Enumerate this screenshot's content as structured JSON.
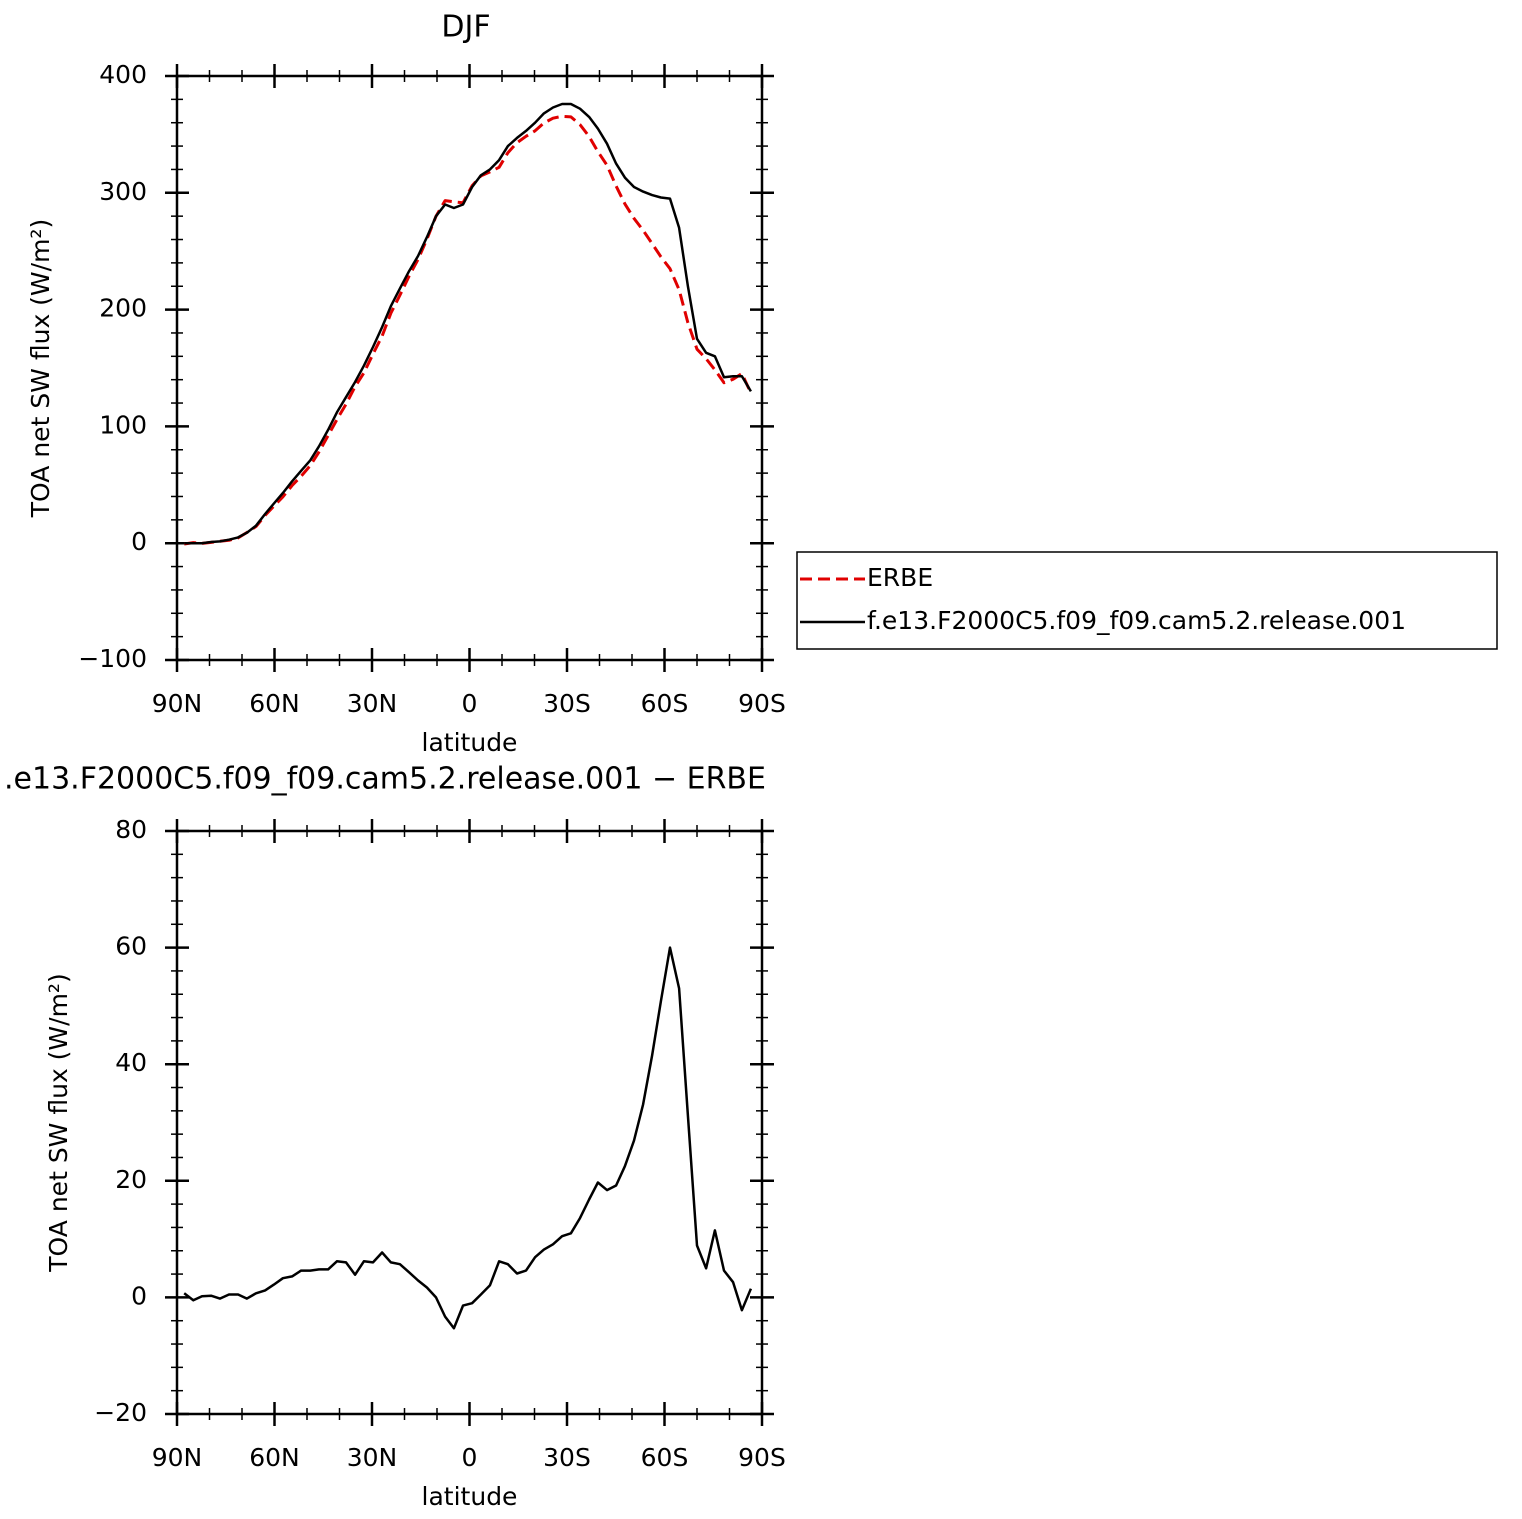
{
  "chart_data": [
    {
      "type": "line",
      "title": "DJF",
      "xlabel": "latitude",
      "ylabel": "TOA net SW flux (W/m²)",
      "xlim": [
        90,
        -90
      ],
      "xticks": [
        {
          "value": 90,
          "label": "90N"
        },
        {
          "value": 60,
          "label": "60N"
        },
        {
          "value": 30,
          "label": "30N"
        },
        0,
        {
          "value": -30,
          "label": "30S"
        },
        {
          "value": -60,
          "label": "60S"
        },
        {
          "value": -90,
          "label": "90S"
        }
      ],
      "ylim": [
        -100,
        400
      ],
      "yticks": [
        {
          "value": -100,
          "label": "−100"
        },
        0,
        100,
        200,
        300,
        400
      ],
      "legend": "right",
      "x": [
        87.8,
        85,
        82.3,
        79.5,
        76.8,
        74,
        71.2,
        68.5,
        65.7,
        62.9,
        60.2,
        57.4,
        54.6,
        51.8,
        49,
        46.3,
        43.5,
        40.8,
        38,
        35.2,
        32.5,
        29.7,
        26.9,
        24.2,
        21.4,
        18.6,
        15.8,
        13.1,
        10.3,
        7.5,
        4.8,
        2,
        -0.8,
        -3.5,
        -6.3,
        -9.1,
        -11.8,
        -14.6,
        -17.4,
        -20.2,
        -22.9,
        -25.7,
        -28.5,
        -31.2,
        -34,
        -36.8,
        -39.5,
        -42.3,
        -45.1,
        -47.8,
        -50.6,
        -53.4,
        -56.2,
        -58.9,
        -61.7,
        -64.5,
        -67.2,
        -70,
        -72.8,
        -75.5,
        -78.3,
        -81.1,
        -83.8,
        -86.6
      ],
      "series": [
        {
          "name": "ERBE",
          "color": "#e00000",
          "dash": true,
          "values": [
            -0.7,
            0.5,
            -0.2,
            0.7,
            1.7,
            2.5,
            4.5,
            9.2,
            14.3,
            23.8,
            31.8,
            39.7,
            49.4,
            57.4,
            66.4,
            78.2,
            92.2,
            105.8,
            119,
            134.1,
            145.8,
            162,
            177.3,
            197,
            212.3,
            228.7,
            243.1,
            260.3,
            280,
            293.3,
            292.3,
            291.4,
            306,
            314.5,
            317.9,
            321.8,
            334.3,
            342.9,
            348.4,
            353.1,
            359.8,
            363.9,
            365.5,
            365,
            358.4,
            348.2,
            335.3,
            323.6,
            305.8,
            290.5,
            278.1,
            267.9,
            256.5,
            245.2,
            235,
            217,
            188.8,
            166.1,
            158,
            148.5,
            137.4,
            140.4,
            145.2,
            128.5
          ]
        },
        {
          "name": "f.e13.F2000C5.f09_f09.cam5.2.release.001",
          "color": "#000000",
          "dash": false,
          "values": [
            0,
            0,
            0,
            1,
            1.5,
            3,
            5,
            9,
            15,
            25,
            34,
            43,
            53,
            62,
            71,
            83,
            97,
            112,
            125,
            138,
            152,
            168,
            185,
            203,
            218,
            233,
            246,
            262,
            280,
            290,
            287,
            290,
            305,
            315,
            320,
            328,
            340,
            347,
            353,
            360,
            368,
            373,
            376,
            376,
            372,
            365,
            355,
            342,
            325,
            313,
            305,
            301,
            298,
            296,
            295,
            270,
            220,
            175,
            163,
            160,
            142,
            143,
            143,
            130
          ]
        }
      ]
    },
    {
      "type": "line",
      "title": ".e13.F2000C5.f09_f09.cam5.2.release.001 − ERBE",
      "xlabel": "latitude",
      "ylabel": "TOA net SW flux (W/m²)",
      "xlim": [
        90,
        -90
      ],
      "xticks": [
        {
          "value": 90,
          "label": "90N"
        },
        {
          "value": 60,
          "label": "60N"
        },
        {
          "value": 30,
          "label": "30N"
        },
        0,
        {
          "value": -30,
          "label": "30S"
        },
        {
          "value": -60,
          "label": "60S"
        },
        {
          "value": -90,
          "label": "90S"
        }
      ],
      "ylim": [
        -20,
        80
      ],
      "yticks": [
        {
          "value": -20,
          "label": "−20"
        },
        0,
        20,
        40,
        60,
        80
      ],
      "x": [
        87.8,
        85,
        82.3,
        79.5,
        76.8,
        74,
        71.2,
        68.5,
        65.7,
        62.9,
        60.2,
        57.4,
        54.6,
        51.8,
        49,
        46.3,
        43.5,
        40.8,
        38,
        35.2,
        32.5,
        29.7,
        26.9,
        24.2,
        21.4,
        18.6,
        15.8,
        13.1,
        10.3,
        7.5,
        4.8,
        2,
        -0.8,
        -3.5,
        -6.3,
        -9.1,
        -11.8,
        -14.6,
        -17.4,
        -20.2,
        -22.9,
        -25.7,
        -28.5,
        -31.2,
        -34,
        -36.8,
        -39.5,
        -42.3,
        -45.1,
        -47.8,
        -50.6,
        -53.4,
        -56.2,
        -58.9,
        -61.7,
        -64.5,
        -67.2,
        -70,
        -72.8,
        -75.5,
        -78.3,
        -81.1,
        -83.8,
        -86.6
      ],
      "series": [
        {
          "color": "#000000",
          "dash": false,
          "values": [
            0.7,
            -0.5,
            0.2,
            0.3,
            -0.2,
            0.5,
            0.5,
            -0.2,
            0.7,
            1.2,
            2.2,
            3.3,
            3.6,
            4.6,
            4.6,
            4.8,
            4.8,
            6.2,
            6,
            3.9,
            6.2,
            6,
            7.7,
            6,
            5.7,
            4.3,
            2.9,
            1.7,
            0,
            -3.3,
            -5.3,
            -1.4,
            -1,
            0.5,
            2.1,
            6.2,
            5.7,
            4.1,
            4.6,
            6.9,
            8.2,
            9.1,
            10.5,
            11,
            13.6,
            16.8,
            19.7,
            18.4,
            19.2,
            22.5,
            26.9,
            33.1,
            41.5,
            50.8,
            60,
            53,
            31.2,
            8.9,
            5,
            11.5,
            4.6,
            2.6,
            -2.2,
            1.5
          ]
        }
      ]
    }
  ]
}
